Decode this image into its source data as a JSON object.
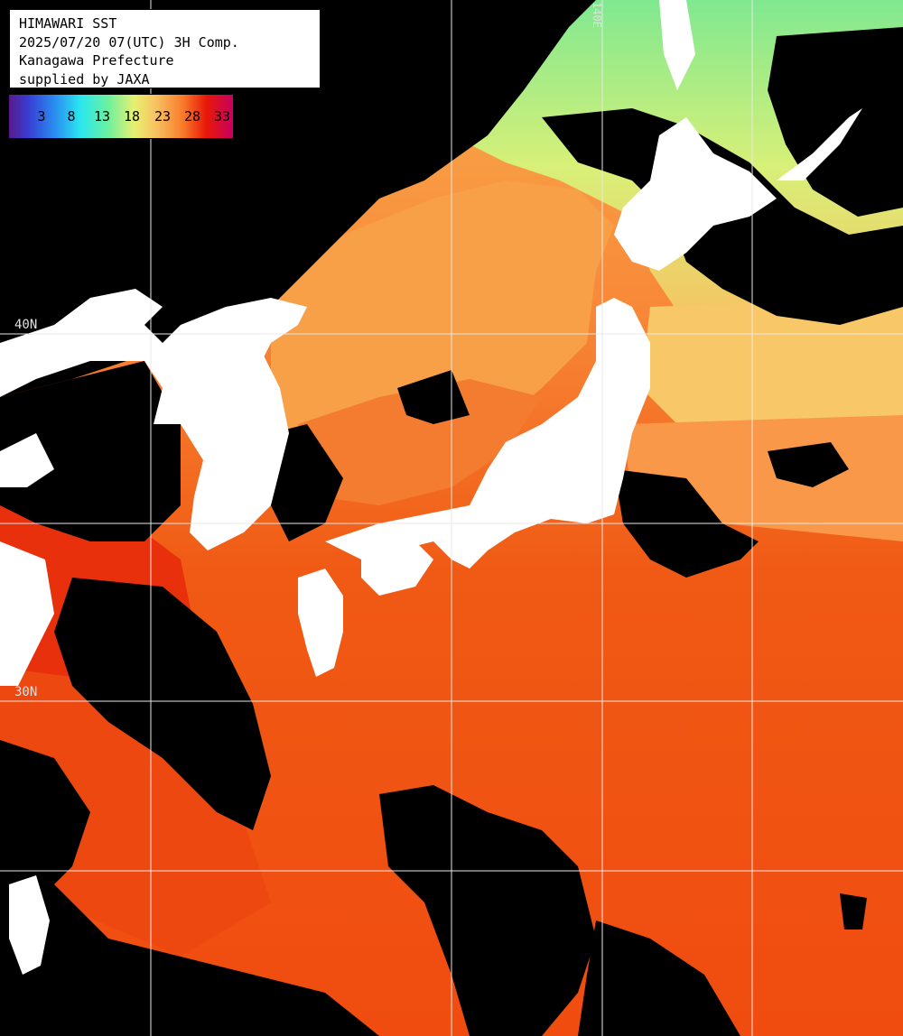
{
  "info": {
    "title": "HIMAWARI SST",
    "datetime": "2025/07/20 07(UTC) 3H Comp.",
    "region": "Kanagawa Prefecture",
    "supplier": "supplied by JAXA"
  },
  "legend": {
    "ticks": [
      "3",
      "8",
      "13",
      "18",
      "23",
      "28",
      "33"
    ]
  },
  "grid_labels": {
    "lat_40": "40N",
    "lat_30": "30N",
    "lon_140": "140E"
  },
  "colors": {
    "land": "#ffffff",
    "cloud": "#000000",
    "sea_warm": "#f05a14",
    "sea_hot": "#e8380c",
    "sea_mild": "#f8a040",
    "sea_cool": "#e8e870",
    "sea_cold": "#80e890",
    "grid": "#e8e8e8"
  }
}
